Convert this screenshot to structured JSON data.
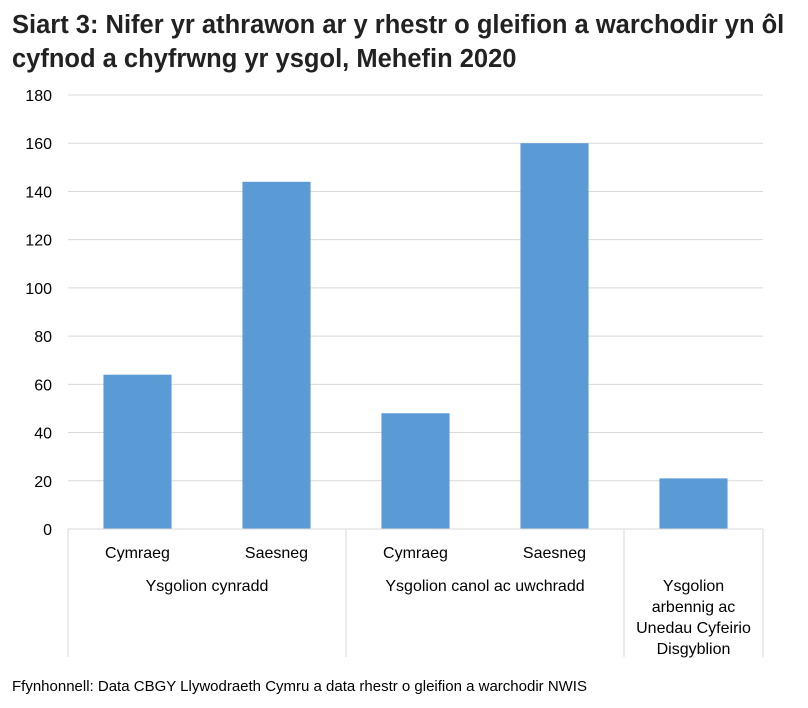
{
  "chart_data": {
    "type": "bar",
    "title": "Siart 3: Nifer yr athrawon ar y rhestr o gleifion a warchodir yn ôl cyfnod a chyfrwng yr ysgol, Mehefin 2020",
    "categories": [
      {
        "label": "Cymraeg",
        "group": 0
      },
      {
        "label": "Saesneg",
        "group": 0
      },
      {
        "label": "Cymraeg",
        "group": 1
      },
      {
        "label": "Saesneg",
        "group": 1
      },
      {
        "label": "",
        "group": 2
      }
    ],
    "groups": [
      {
        "label": [
          "Ysgolion cynradd"
        ],
        "span": 2
      },
      {
        "label": [
          "Ysgolion canol ac uwchradd"
        ],
        "span": 2
      },
      {
        "label": [
          "Ysgolion",
          "arbennig ac",
          "Unedau Cyfeirio",
          "Disgyblion"
        ],
        "span": 1
      }
    ],
    "values": [
      64,
      144,
      48,
      160,
      21
    ],
    "ylim": [
      0,
      180
    ],
    "yticks": [
      0,
      20,
      40,
      60,
      80,
      100,
      120,
      140,
      160,
      180
    ],
    "grid": true,
    "bar_color": "#5B9BD5",
    "source": "Ffynhonnell: Data CBGY Llywodraeth Cymru a data rhestr o gleifion a warchodir NWIS"
  }
}
